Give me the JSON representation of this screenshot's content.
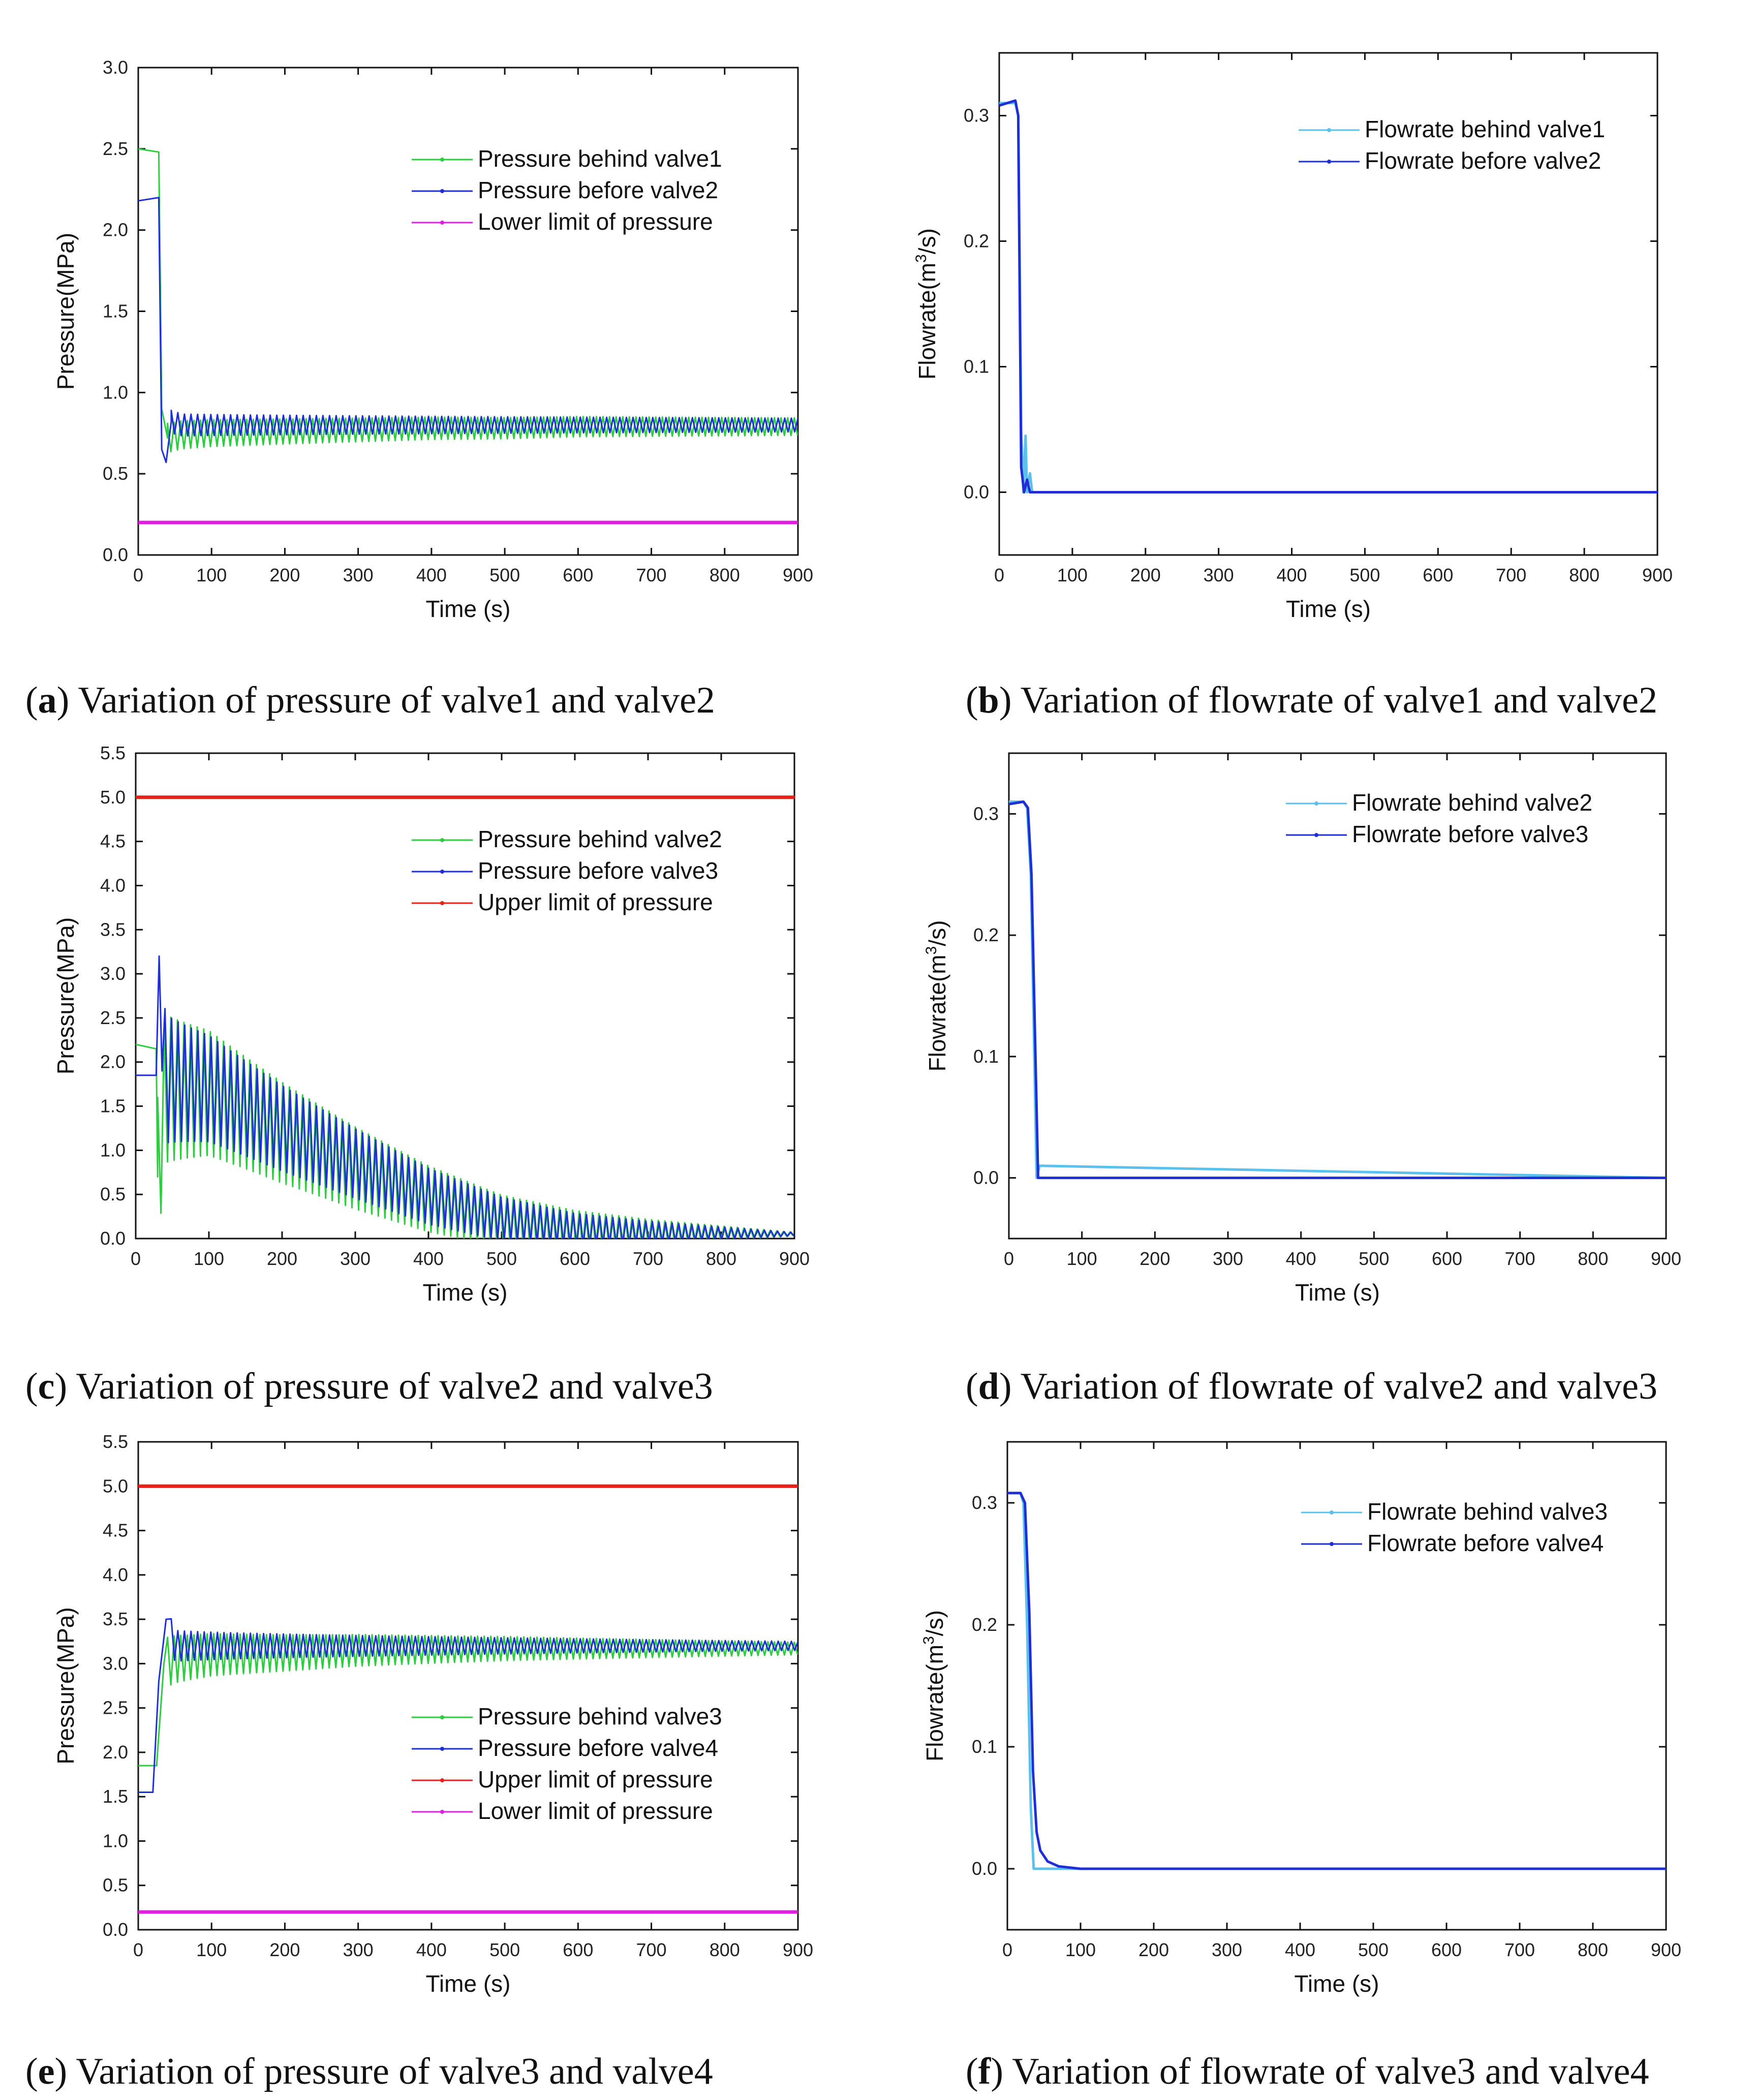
{
  "chart_data": [
    {
      "id": "a",
      "type": "line",
      "caption_letter": "a",
      "caption_text": "Variation of pressure of valve1 and valve2",
      "xlabel": "Time (s)",
      "ylabel": "Pressure(MPa)",
      "xlim": [
        0,
        900
      ],
      "ylim": [
        0,
        3.0
      ],
      "xticks": [
        "0",
        "100",
        "200",
        "300",
        "400",
        "500",
        "600",
        "700",
        "800",
        "900"
      ],
      "yticks": [
        "0.0",
        "0.5",
        "1.0",
        "1.5",
        "2.0",
        "2.5",
        "3.0"
      ],
      "legend_position": "top-right",
      "series": [
        {
          "name": "Pressure behind valve1",
          "color": "#2ecc40",
          "x": [
            0,
            28,
            32,
            40,
            60,
            100,
            200,
            300,
            400,
            500,
            600,
            700,
            800,
            900
          ],
          "y": [
            2.5,
            2.48,
            0.9,
            0.72,
            0.74,
            0.75,
            0.76,
            0.77,
            0.78,
            0.78,
            0.79,
            0.79,
            0.79,
            0.79
          ],
          "osc_from": 40,
          "osc_amp": 0.09
        },
        {
          "name": "Pressure before valve2",
          "color": "#1f2fd6",
          "x": [
            0,
            28,
            32,
            38,
            45,
            60,
            100,
            200,
            300,
            400,
            500,
            600,
            700,
            800,
            900
          ],
          "y": [
            2.18,
            2.2,
            0.65,
            0.57,
            0.82,
            0.8,
            0.8,
            0.8,
            0.8,
            0.8,
            0.8,
            0.8,
            0.8,
            0.8,
            0.8
          ],
          "osc_from": 45,
          "osc_amp": 0.07
        },
        {
          "name": "Lower limit of pressure",
          "color": "#e020e0",
          "x": [
            0,
            900
          ],
          "y": [
            0.2,
            0.2
          ]
        }
      ]
    },
    {
      "id": "b",
      "type": "line",
      "caption_letter": "b",
      "caption_text": "Variation of flowrate of valve1 and valve2",
      "xlabel": "Time (s)",
      "ylabel_prefix": "Flowrate(m",
      "ylabel_sup": "3",
      "ylabel_suffix": "/s)",
      "xlim": [
        0,
        900
      ],
      "ylim": [
        -0.05,
        0.35
      ],
      "xticks": [
        "0",
        "100",
        "200",
        "300",
        "400",
        "500",
        "600",
        "700",
        "800",
        "900"
      ],
      "yticks": [
        "0.0",
        "0.1",
        "0.2",
        "0.3"
      ],
      "ytick_values": [
        0.0,
        0.1,
        0.2,
        0.3
      ],
      "legend_position": "top-right",
      "series": [
        {
          "name": "Flowrate behind valve1",
          "color": "#5bc0eb",
          "x": [
            0,
            22,
            26,
            30,
            33,
            36,
            38,
            42,
            45,
            900
          ],
          "y": [
            0.31,
            0.31,
            0.3,
            0.05,
            0.0,
            0.045,
            0.0,
            0.015,
            0.0,
            0.0
          ]
        },
        {
          "name": "Flowrate before valve2",
          "color": "#1f2fd6",
          "x": [
            0,
            22,
            26,
            30,
            34,
            38,
            42,
            900
          ],
          "y": [
            0.308,
            0.312,
            0.3,
            0.02,
            0.0,
            0.01,
            0.0,
            0.0
          ]
        }
      ]
    },
    {
      "id": "c",
      "type": "line",
      "caption_letter": "c",
      "caption_text": "Variation of pressure of valve2 and valve3",
      "xlabel": "Time (s)",
      "ylabel": "Pressure(MPa)",
      "xlim": [
        0,
        900
      ],
      "ylim": [
        0,
        5.5
      ],
      "xticks": [
        "0",
        "100",
        "200",
        "300",
        "400",
        "500",
        "600",
        "700",
        "800",
        "900"
      ],
      "yticks": [
        "0.0",
        "0.5",
        "1.0",
        "1.5",
        "2.0",
        "2.5",
        "3.0",
        "3.5",
        "4.0",
        "4.5",
        "5.0",
        "5.5"
      ],
      "legend_position": "top-right",
      "series": [
        {
          "name": "Pressure behind valve2",
          "color": "#2ecc40",
          "x": [
            0,
            28,
            30,
            40,
            100,
            200,
            300,
            400,
            500,
            600,
            700,
            800,
            900
          ],
          "y": [
            2.2,
            2.15,
            0.7,
            1.7,
            1.65,
            1.2,
            0.8,
            0.45,
            0.2,
            0.1,
            0.07,
            0.06,
            0.05
          ],
          "osc_from": 30,
          "osc_amp": 0.9,
          "osc_decay_to": 0.02
        },
        {
          "name": "Pressure before valve3",
          "color": "#1f2fd6",
          "x": [
            0,
            28,
            32,
            36,
            45,
            100,
            200,
            300,
            400,
            500,
            600,
            700,
            800,
            900
          ],
          "y": [
            1.85,
            1.85,
            3.2,
            1.9,
            1.8,
            1.7,
            1.25,
            0.85,
            0.48,
            0.22,
            0.1,
            0.07,
            0.06,
            0.05
          ],
          "osc_from": 40,
          "osc_amp": 0.75,
          "osc_decay_to": 0.02
        },
        {
          "name": "Upper limit of pressure",
          "color": "#e8201c",
          "x": [
            0,
            900
          ],
          "y": [
            5.0,
            5.0
          ]
        }
      ]
    },
    {
      "id": "d",
      "type": "line",
      "caption_letter": "d",
      "caption_text": "Variation of flowrate of valve2 and valve3",
      "xlabel": "Time (s)",
      "ylabel_prefix": "Flowrate(m",
      "ylabel_sup": "3",
      "ylabel_suffix": "/s)",
      "xlim": [
        0,
        900
      ],
      "ylim": [
        -0.05,
        0.35
      ],
      "xticks": [
        "0",
        "100",
        "200",
        "300",
        "400",
        "500",
        "600",
        "700",
        "800",
        "900"
      ],
      "yticks": [
        "0.0",
        "0.1",
        "0.2",
        "0.3"
      ],
      "ytick_values": [
        0.0,
        0.1,
        0.2,
        0.3
      ],
      "legend_position": "top-right",
      "series": [
        {
          "name": "Flowrate behind valve2",
          "color": "#5bc0eb",
          "x": [
            0,
            20,
            25,
            30,
            38,
            42,
            900
          ],
          "y": [
            0.31,
            0.31,
            0.305,
            0.25,
            0.0,
            0.01,
            0.0
          ]
        },
        {
          "name": "Flowrate before valve3",
          "color": "#1f2fd6",
          "x": [
            0,
            20,
            26,
            31,
            40,
            900
          ],
          "y": [
            0.308,
            0.31,
            0.305,
            0.25,
            0.0,
            0.0
          ]
        }
      ]
    },
    {
      "id": "e",
      "type": "line",
      "caption_letter": "e",
      "caption_text": "Variation of pressure of valve3 and valve4",
      "xlabel": "Time (s)",
      "ylabel": "Pressure(MPa)",
      "xlim": [
        0,
        900
      ],
      "ylim": [
        0,
        5.5
      ],
      "xticks": [
        "0",
        "100",
        "200",
        "300",
        "400",
        "500",
        "600",
        "700",
        "800",
        "900"
      ],
      "yticks": [
        "0.0",
        "0.5",
        "1.0",
        "1.5",
        "2.0",
        "2.5",
        "3.0",
        "3.5",
        "4.0",
        "4.5",
        "5.0",
        "5.5"
      ],
      "legend_position": "center-right",
      "series": [
        {
          "name": "Pressure behind valve3",
          "color": "#2ecc40",
          "x": [
            0,
            25,
            35,
            50,
            100,
            200,
            300,
            400,
            500,
            600,
            700,
            800,
            900
          ],
          "y": [
            1.85,
            1.85,
            3.0,
            3.05,
            3.1,
            3.12,
            3.15,
            3.16,
            3.17,
            3.17,
            3.17,
            3.17,
            3.17
          ],
          "osc_from": 40,
          "osc_amp": 0.28,
          "osc_decay_to": 0.07
        },
        {
          "name": "Pressure before valve4",
          "color": "#1f2fd6",
          "x": [
            0,
            20,
            28,
            38,
            50,
            100,
            200,
            300,
            400,
            500,
            600,
            700,
            800,
            900
          ],
          "y": [
            1.55,
            1.55,
            2.8,
            3.5,
            3.2,
            3.2,
            3.2,
            3.2,
            3.2,
            3.2,
            3.2,
            3.2,
            3.2,
            3.2
          ],
          "osc_from": 45,
          "osc_amp": 0.18,
          "osc_decay_to": 0.05
        },
        {
          "name": "Upper limit of pressure",
          "color": "#e8201c",
          "x": [
            0,
            900
          ],
          "y": [
            5.0,
            5.0
          ]
        },
        {
          "name": "Lower limit of pressure",
          "color": "#e020e0",
          "x": [
            0,
            900
          ],
          "y": [
            0.2,
            0.2
          ]
        }
      ]
    },
    {
      "id": "f",
      "type": "line",
      "caption_letter": "f",
      "caption_text": "Variation of flowrate of valve3 and valve4",
      "xlabel": "Time (s)",
      "ylabel_prefix": "Flowrate(m",
      "ylabel_sup": "3",
      "ylabel_suffix": "/s)",
      "xlim": [
        0,
        900
      ],
      "ylim": [
        -0.05,
        0.35
      ],
      "xticks": [
        "0",
        "100",
        "200",
        "300",
        "400",
        "500",
        "600",
        "700",
        "800",
        "900"
      ],
      "yticks": [
        "0.0",
        "0.1",
        "0.2",
        "0.3"
      ],
      "ytick_values": [
        0.0,
        0.1,
        0.2,
        0.3
      ],
      "legend_position": "top-right",
      "series": [
        {
          "name": "Flowrate behind valve3",
          "color": "#5bc0eb",
          "x": [
            0,
            18,
            22,
            27,
            32,
            36,
            40,
            900
          ],
          "y": [
            0.308,
            0.308,
            0.3,
            0.2,
            0.05,
            0.0,
            0.0,
            0.0
          ]
        },
        {
          "name": "Flowrate before valve4",
          "color": "#1f2fd6",
          "x": [
            0,
            18,
            24,
            30,
            35,
            40,
            45,
            55,
            70,
            100,
            900
          ],
          "y": [
            0.308,
            0.308,
            0.3,
            0.21,
            0.08,
            0.03,
            0.015,
            0.006,
            0.002,
            0.0,
            0.0
          ]
        }
      ]
    }
  ]
}
